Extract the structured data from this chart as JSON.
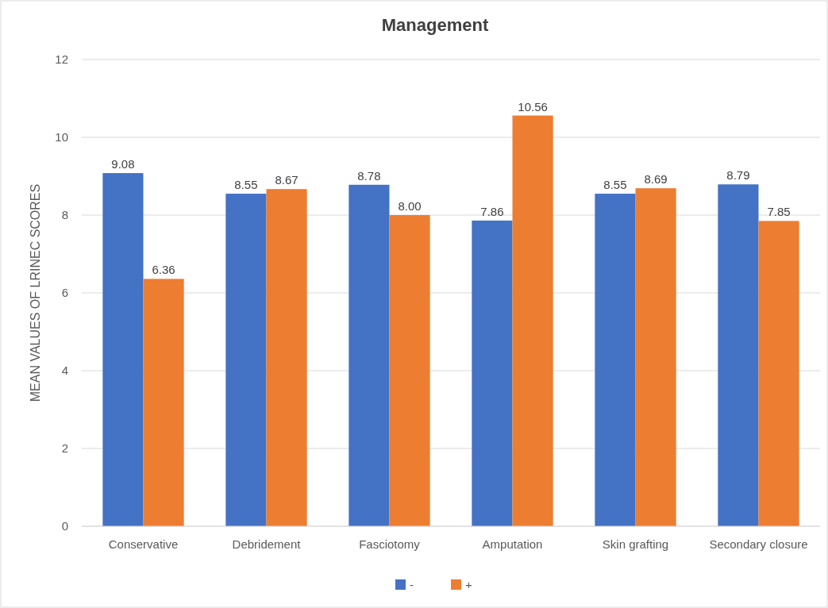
{
  "chart_data": {
    "type": "bar",
    "title": "Management",
    "ylabel": "MEAN VALUES OF LRINEC SCORES",
    "categories": [
      "Conservative",
      "Debridement",
      "Fasciotomy",
      "Amputation",
      "Skin grafting",
      "Secondary closure"
    ],
    "series": [
      {
        "name": "-",
        "color": "#4472c4",
        "values": [
          9.08,
          8.55,
          8.78,
          7.86,
          8.55,
          8.79
        ],
        "value_labels": [
          "9.08",
          "8.55",
          "8.78",
          "7.86",
          "8.55",
          "8.79"
        ]
      },
      {
        "name": "+",
        "color": "#ed7d31",
        "values": [
          6.36,
          8.67,
          8.0,
          10.56,
          8.69,
          7.85
        ],
        "value_labels": [
          "6.36",
          "8.67",
          "8.00",
          "10.56",
          "8.69",
          "7.85"
        ]
      }
    ],
    "ylim": [
      0,
      12
    ],
    "yticks": [
      0,
      2,
      4,
      6,
      8,
      10,
      12
    ],
    "grid": "y",
    "legend": "bottom"
  }
}
